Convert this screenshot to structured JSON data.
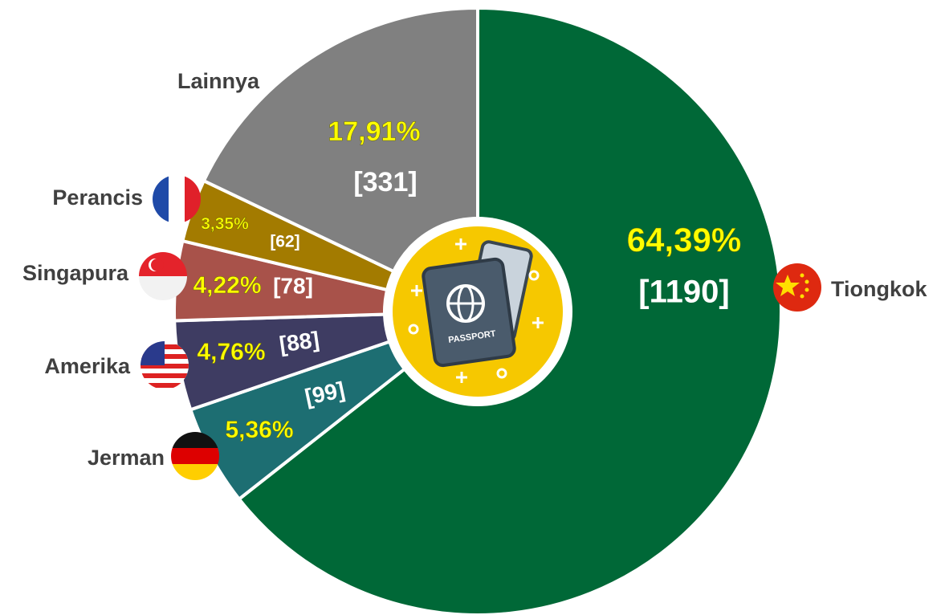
{
  "chart_data": {
    "type": "pie",
    "categories": [
      "Tiongkok",
      "Jerman",
      "Amerika",
      "Singapura",
      "Perancis",
      "Lainnya"
    ],
    "values": [
      64.39,
      5.36,
      4.76,
      4.22,
      3.35,
      17.91
    ],
    "value_labels": [
      "64,39%",
      "5,36%",
      "4,76%",
      "4,22%",
      "3,35%",
      "17,91%"
    ],
    "counts": [
      1190,
      99,
      88,
      78,
      62,
      331
    ],
    "count_labels": [
      "[1190]",
      "[99]",
      "[88]",
      "[78]",
      "[62]",
      "[331]"
    ],
    "colors": [
      "#006837",
      "#1d6e72",
      "#3e3c62",
      "#a8524a",
      "#a37b00",
      "#808080"
    ]
  }
}
